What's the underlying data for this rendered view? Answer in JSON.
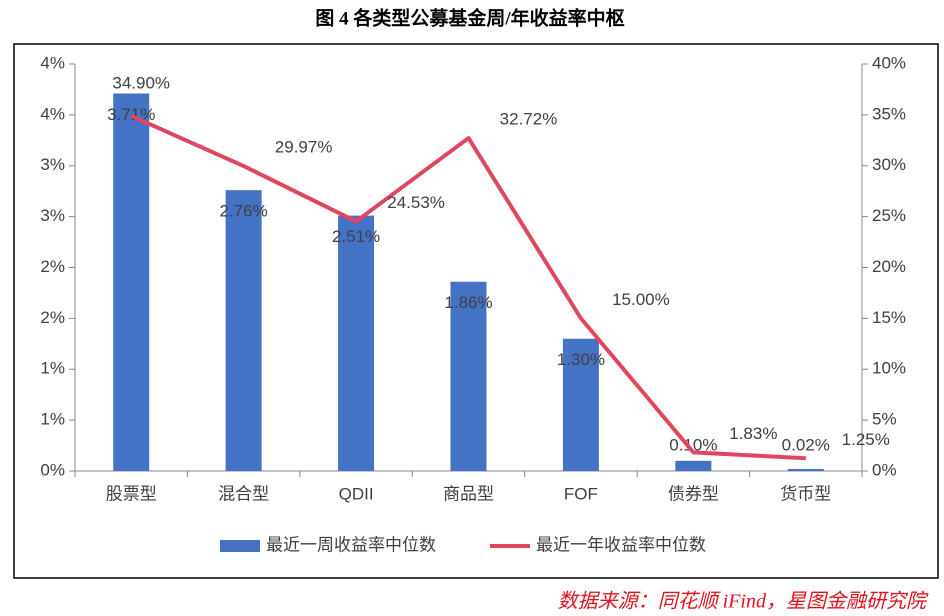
{
  "chart_data": {
    "type": "bar",
    "title": "图 4 各类型公募基金周/年收益率中枢",
    "source": "数据来源：同花顺 iFind，星图金融研究院",
    "categories": [
      "股票型",
      "混合型",
      "QDII",
      "商品型",
      "FOF",
      "债券型",
      "货币型"
    ],
    "series": [
      {
        "name": "最近一周收益率中位数",
        "color": "#4472c4",
        "type": "bar",
        "values": [
          3.71,
          2.76,
          2.51,
          1.86,
          1.3,
          0.1,
          0.02
        ],
        "value_labels": [
          "3.71%",
          "2.76%",
          "2.51%",
          "1.86%",
          "1.30%",
          "0.10%",
          "0.02%"
        ]
      },
      {
        "name": "最近一年收益率中位数",
        "color": "#e0465e",
        "type": "line",
        "axis": "y2",
        "values": [
          34.9,
          29.97,
          24.53,
          32.72,
          15.0,
          1.83,
          1.25
        ],
        "value_labels": [
          "34.90%",
          "29.97%",
          "24.53%",
          "32.72%",
          "15.00%",
          "1.83%",
          "1.25%"
        ]
      }
    ],
    "ylim": [
      0,
      4
    ],
    "yticks": [
      {
        "value": 0,
        "label": "0%"
      },
      {
        "value": 0.5,
        "label": "1%"
      },
      {
        "value": 1,
        "label": "1%"
      },
      {
        "value": 1.5,
        "label": "2%"
      },
      {
        "value": 2,
        "label": "2%"
      },
      {
        "value": 2.5,
        "label": "3%"
      },
      {
        "value": 3,
        "label": "3%"
      },
      {
        "value": 3.5,
        "label": "4%"
      },
      {
        "value": 4,
        "label": "4%"
      }
    ],
    "y2lim": [
      0,
      40
    ],
    "y2ticks": [
      {
        "value": 0,
        "label": "0%"
      },
      {
        "value": 5,
        "label": "5%"
      },
      {
        "value": 10,
        "label": "10%"
      },
      {
        "value": 15,
        "label": "15%"
      },
      {
        "value": 20,
        "label": "20%"
      },
      {
        "value": 25,
        "label": "25%"
      },
      {
        "value": 30,
        "label": "30%"
      },
      {
        "value": 35,
        "label": "35%"
      },
      {
        "value": 40,
        "label": "40%"
      }
    ],
    "legend": "bottom"
  }
}
